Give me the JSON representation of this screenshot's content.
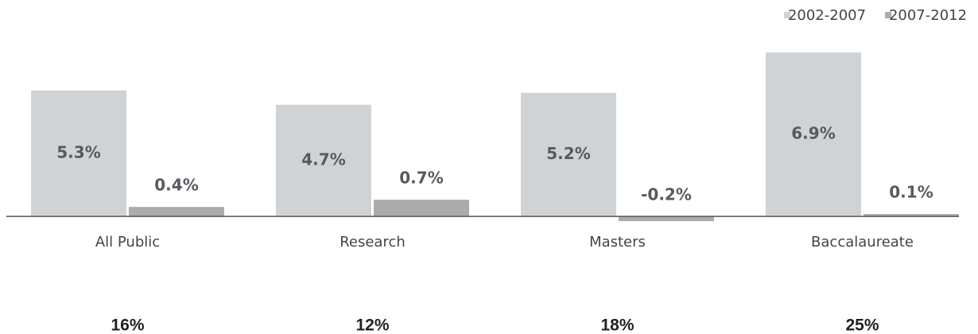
{
  "chart_data": {
    "type": "bar",
    "categories": [
      "All Public",
      "Research",
      "Masters",
      "Baccalaureate"
    ],
    "series": [
      {
        "name": "2002-2007",
        "color": "#d0d3d6",
        "values": [
          5.3,
          4.7,
          5.2,
          6.9
        ],
        "value_labels": [
          "5.3%",
          "4.7%",
          "5.2%",
          "6.9%"
        ]
      },
      {
        "name": "2007-2012",
        "color": "#a9abad",
        "values": [
          0.4,
          0.7,
          -0.2,
          0.1
        ],
        "value_labels": [
          "0.4%",
          "0.7%",
          "-0.2%",
          "0.1%"
        ]
      }
    ],
    "ylim": [
      -1,
      7
    ],
    "legend": "top-right",
    "annotations": [
      "16%",
      "12%",
      "18%",
      "25%"
    ]
  }
}
